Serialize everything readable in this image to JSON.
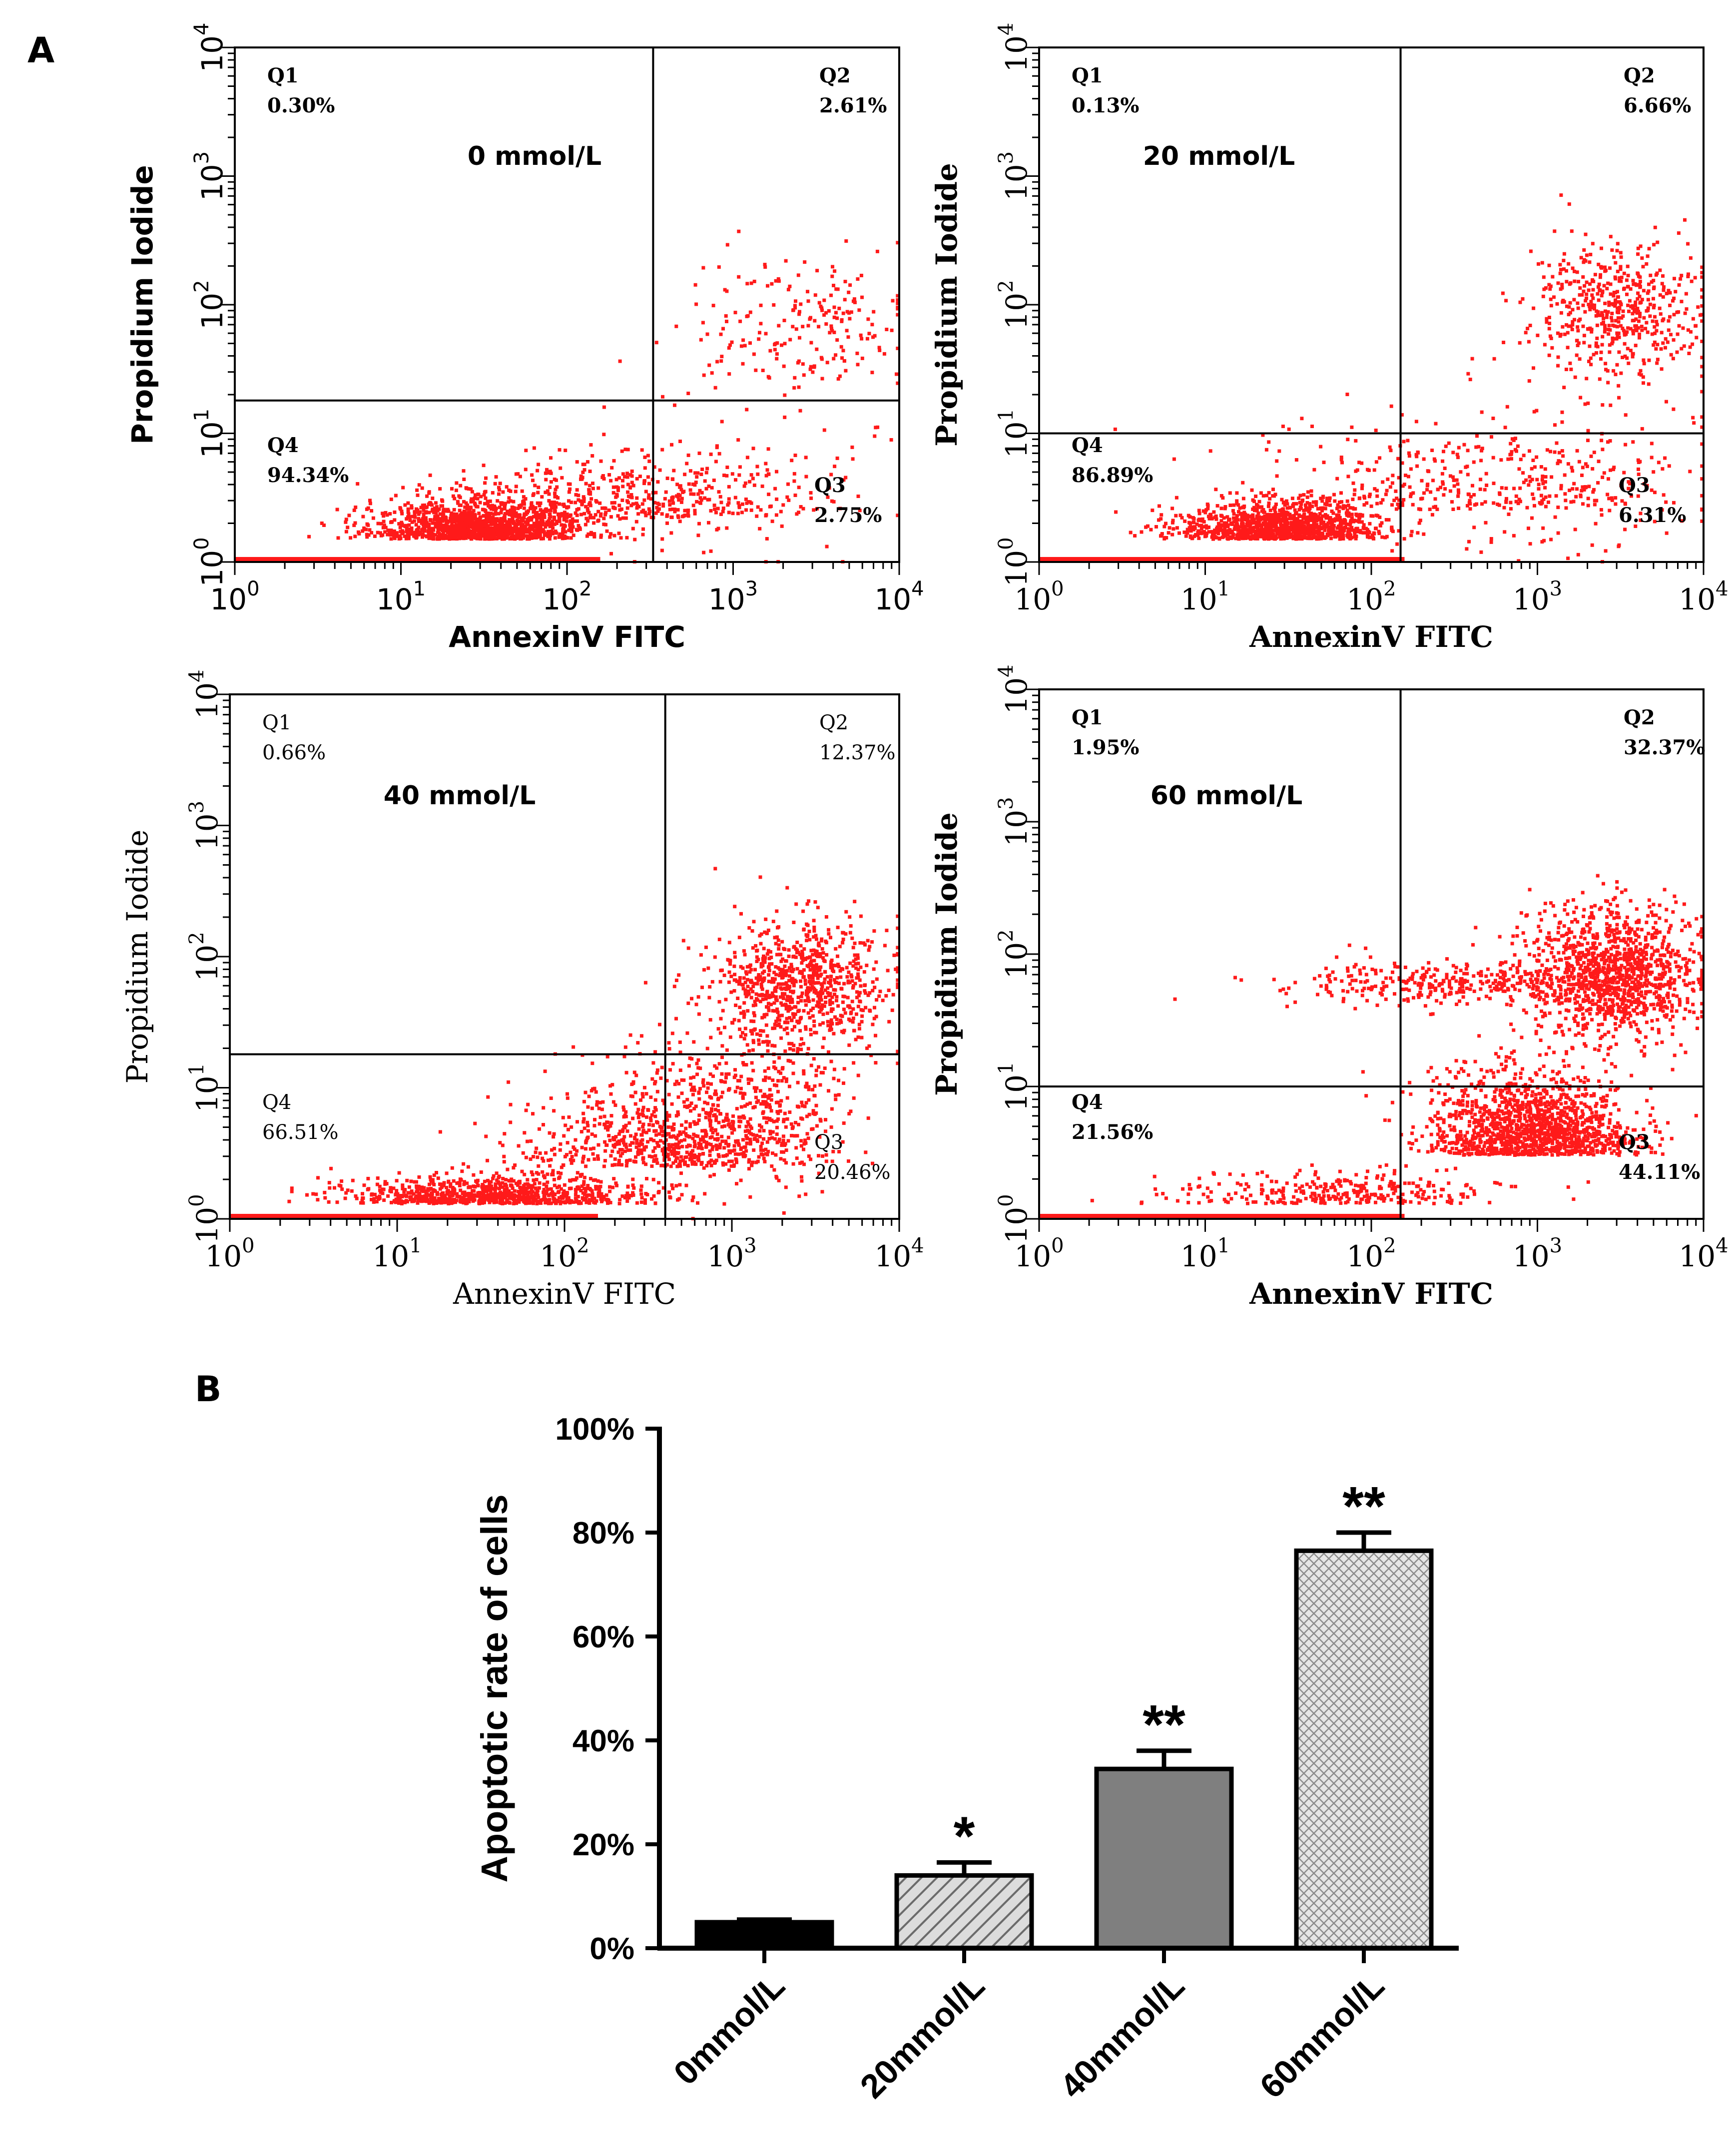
{
  "panels": {
    "a_label": "A",
    "b_label": "B"
  },
  "chart_data": [
    {
      "type": "scatter",
      "panel": "A",
      "title": "0 mmol/L",
      "xlabel": "AnnexinV FITC",
      "ylabel": "Propidium Iodide",
      "x_scale": "log",
      "y_scale": "log",
      "xlim": [
        1,
        10000
      ],
      "ylim": [
        1,
        10000
      ],
      "tick_labels": [
        [
          "10",
          "0"
        ],
        [
          "10",
          "1"
        ],
        [
          "10",
          "2"
        ],
        [
          "10",
          "3"
        ],
        [
          "10",
          "4"
        ]
      ],
      "gate": {
        "x": 330,
        "y": 18
      },
      "quadrants": {
        "Q1": "0.30%",
        "Q2": "2.61%",
        "Q3": "2.75%",
        "Q4": "94.34%"
      },
      "quadrant_names": [
        "Q1",
        "Q2",
        "Q3",
        "Q4"
      ]
    },
    {
      "type": "scatter",
      "panel": "A",
      "title": "20 mmol/L",
      "xlabel": "AnnexinV FITC",
      "ylabel": "Propidium Iodide",
      "x_scale": "log",
      "y_scale": "log",
      "xlim": [
        1,
        10000
      ],
      "ylim": [
        1,
        10000
      ],
      "tick_labels": [
        [
          "10",
          "0"
        ],
        [
          "10",
          "1"
        ],
        [
          "10",
          "2"
        ],
        [
          "10",
          "3"
        ],
        [
          "10",
          "4"
        ]
      ],
      "gate": {
        "x": 150,
        "y": 10
      },
      "quadrants": {
        "Q1": "0.13%",
        "Q2": "6.66%",
        "Q3": "6.31%",
        "Q4": "86.89%"
      },
      "quadrant_names": [
        "Q1",
        "Q2",
        "Q3",
        "Q4"
      ]
    },
    {
      "type": "scatter",
      "panel": "A",
      "title": "40 mmol/L",
      "xlabel": "AnnexinV FITC",
      "ylabel": "Propidium Iodide",
      "x_scale": "log",
      "y_scale": "log",
      "xlim": [
        1,
        10000
      ],
      "ylim": [
        1,
        10000
      ],
      "tick_labels": [
        [
          "10",
          "0"
        ],
        [
          "10",
          "1"
        ],
        [
          "10",
          "2"
        ],
        [
          "10",
          "3"
        ],
        [
          "10",
          "4"
        ]
      ],
      "gate": {
        "x": 400,
        "y": 18
      },
      "quadrants": {
        "Q1": "0.66%",
        "Q2": "12.37%",
        "Q3": "20.46%",
        "Q4": "66.51%"
      },
      "quadrant_names": [
        "Q1",
        "Q2",
        "Q3",
        "Q4"
      ]
    },
    {
      "type": "scatter",
      "panel": "A",
      "title": "60 mmol/L",
      "xlabel": "AnnexinV FITC",
      "ylabel": "Propidium Iodide",
      "x_scale": "log",
      "y_scale": "log",
      "xlim": [
        1,
        10000
      ],
      "ylim": [
        1,
        10000
      ],
      "tick_labels": [
        [
          "10",
          "0"
        ],
        [
          "10",
          "1"
        ],
        [
          "10",
          "2"
        ],
        [
          "10",
          "3"
        ],
        [
          "10",
          "4"
        ]
      ],
      "gate": {
        "x": 150,
        "y": 10
      },
      "quadrants": {
        "Q1": "1.95%",
        "Q2": "32.37%",
        "Q3": "44.11%",
        "Q4": "21.56%"
      },
      "quadrant_names": [
        "Q1",
        "Q2",
        "Q3",
        "Q4"
      ]
    },
    {
      "type": "bar",
      "panel": "B",
      "title": "",
      "categories": [
        "0mmol/L",
        "20mmol/L",
        "40mmol/L",
        "60mmol/L"
      ],
      "values": [
        5.0,
        14.0,
        34.5,
        76.5
      ],
      "errors": [
        0.5,
        2.5,
        3.5,
        3.5
      ],
      "significance": [
        "",
        "*",
        "**",
        "**"
      ],
      "patterns": [
        "solid-black",
        "diagonal-hatch",
        "solid-gray",
        "crosshatch"
      ],
      "xlabel": "",
      "ylabel": "Apoptotic rate of cells",
      "ylim": [
        0,
        100
      ],
      "yticks": [
        "0%",
        "20%",
        "40%",
        "60%",
        "80%",
        "100%"
      ],
      "grid": false
    }
  ]
}
